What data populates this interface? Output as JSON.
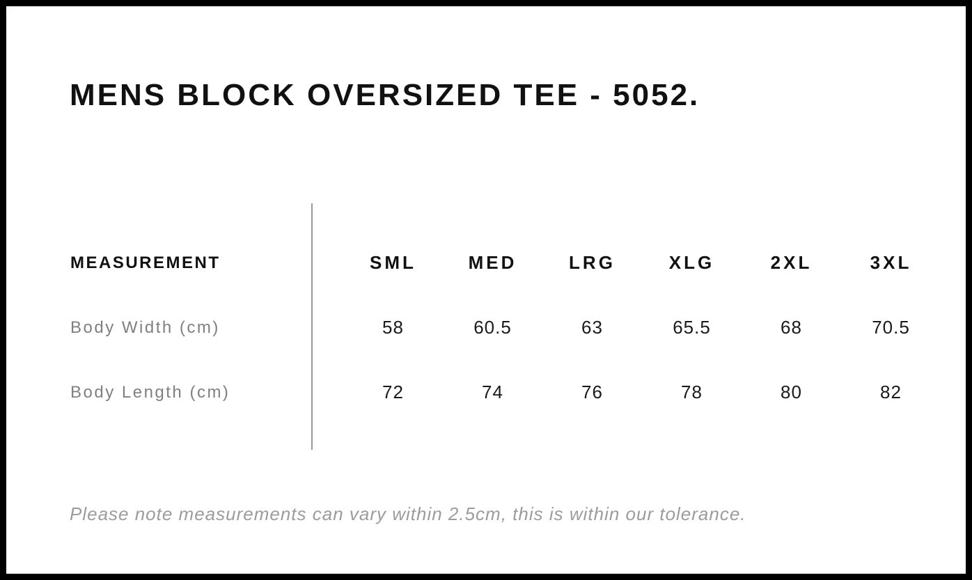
{
  "page": {
    "title": "MENS BLOCK OVERSIZED TEE - 5052."
  },
  "size_chart": {
    "measurement_header": "MEASUREMENT",
    "size_columns": [
      "SML",
      "MED",
      "LRG",
      "XLG",
      "2XL",
      "3XL"
    ],
    "rows": [
      {
        "label": "Body Width (cm)",
        "values": [
          "58",
          "60.5",
          "63",
          "65.5",
          "68",
          "70.5"
        ]
      },
      {
        "label": "Body Length (cm)",
        "values": [
          "72",
          "74",
          "76",
          "78",
          "80",
          "82"
        ]
      }
    ]
  },
  "note": {
    "text": "Please note measurements can vary within 2.5cm, this is within our tolerance."
  },
  "colors": {
    "border": "#000000",
    "background": "#ffffff",
    "heading_text": "#111111",
    "values_text": "#1a1a1a",
    "label_text": "#808080",
    "note_text": "#9c9c9c",
    "divider": "#9a9a9a"
  }
}
